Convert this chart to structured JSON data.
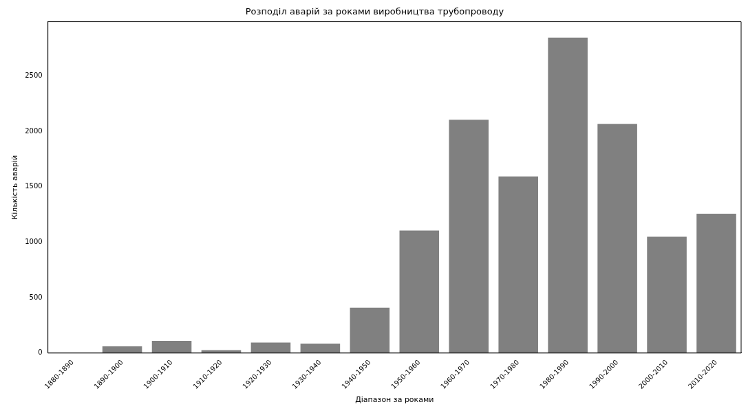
{
  "chart_data": {
    "type": "bar",
    "title": "Розподіл аварій за роками виробництва трубопроводу",
    "xlabel": "Діапазон за роками",
    "ylabel": "Кількість аварій",
    "categories": [
      "1880-1890",
      "1890-1900",
      "1900-1910",
      "1910-1920",
      "1920-1930",
      "1930-1940",
      "1940-1950",
      "1950-1960",
      "1960-1970",
      "1970-1980",
      "1980-1990",
      "1990-2000",
      "2000-2010",
      "2010-2020"
    ],
    "values": [
      0,
      61,
      110,
      26,
      95,
      85,
      409,
      1105,
      2106,
      1594,
      2847,
      2068,
      1050,
      1257
    ],
    "color": "#808080",
    "ylim": [
      0,
      2990
    ],
    "yticks": [
      0,
      500,
      1000,
      1500,
      2000,
      2500
    ],
    "grid": false,
    "legend": false
  }
}
